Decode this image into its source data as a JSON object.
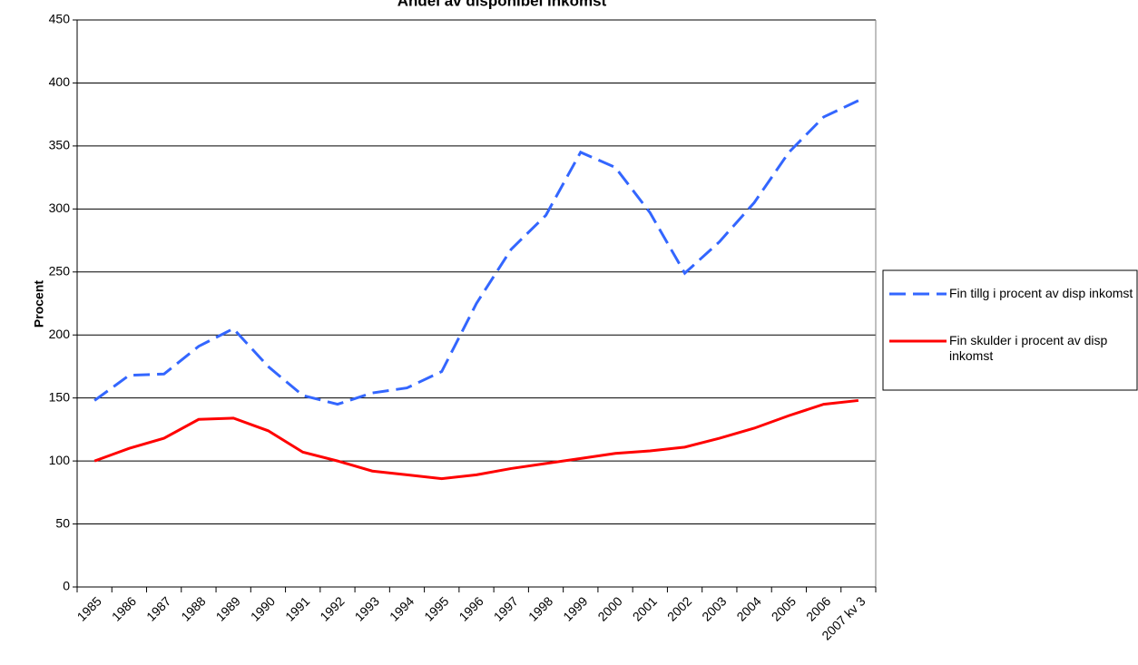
{
  "chart_data": {
    "type": "line",
    "title": "Andel av disponibel inkomst",
    "y_label": "Procent",
    "categories": [
      "1985",
      "1986",
      "1987",
      "1988",
      "1989",
      "1990",
      "1991",
      "1992",
      "1993",
      "1994",
      "1995",
      "1996",
      "1997",
      "1998",
      "1999",
      "2000",
      "2001",
      "2002",
      "2003",
      "2004",
      "2005",
      "2006",
      "2007 kv 3"
    ],
    "series": [
      {
        "name": "Fin tillg i procent av disp inkomst",
        "color": "#3366ff",
        "dashed": true,
        "values": [
          148,
          168,
          169,
          191,
          205,
          175,
          152,
          145,
          154,
          158,
          171,
          225,
          268,
          295,
          345,
          333,
          297,
          249,
          274,
          305,
          345,
          373,
          386
        ]
      },
      {
        "name": "Fin skulder i procent av disp inkomst",
        "color": "#ff0000",
        "dashed": false,
        "values": [
          100,
          110,
          118,
          133,
          134,
          124,
          107,
          100,
          92,
          89,
          86,
          89,
          94,
          98,
          102,
          106,
          108,
          111,
          118,
          126,
          136,
          145,
          148
        ]
      }
    ],
    "ylim": [
      0,
      450
    ],
    "yticks": [
      0,
      50,
      100,
      150,
      200,
      250,
      300,
      350,
      400,
      450
    ],
    "grid": true
  }
}
